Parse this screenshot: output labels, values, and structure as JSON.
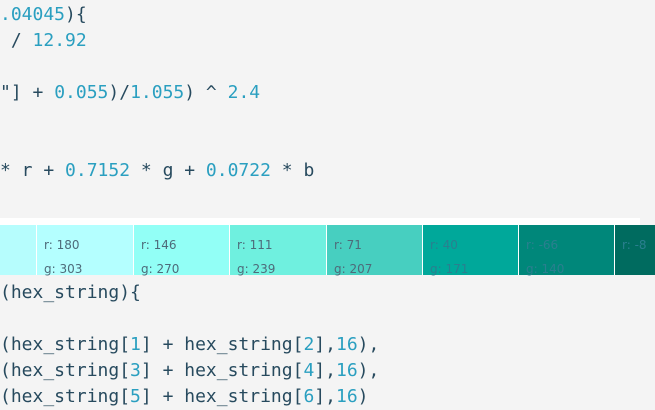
{
  "code_top": [
    [
      {
        "t": ".04045",
        "c": "num"
      },
      {
        "t": "){",
        "c": "op"
      }
    ],
    [
      {
        "t": " / ",
        "c": "op"
      },
      {
        "t": "12.92",
        "c": "num"
      }
    ],
    [],
    [
      {
        "t": "\"] + ",
        "c": "op"
      },
      {
        "t": "0.055",
        "c": "num"
      },
      {
        "t": ")/",
        "c": "op"
      },
      {
        "t": "1.055",
        "c": "num"
      },
      {
        "t": ") ^ ",
        "c": "op"
      },
      {
        "t": "2.4",
        "c": "num"
      }
    ],
    [],
    [],
    [
      {
        "t": "* r + ",
        "c": "op"
      },
      {
        "t": "0.7152",
        "c": "num"
      },
      {
        "t": " * g + ",
        "c": "op"
      },
      {
        "t": "0.0722",
        "c": "num"
      },
      {
        "t": " * b",
        "c": "op"
      }
    ]
  ],
  "code_bottom": [
    [
      {
        "t": "(hex_string){",
        "c": "op"
      }
    ],
    [],
    [
      {
        "t": "(hex_string[",
        "c": "op"
      },
      {
        "t": "1",
        "c": "num"
      },
      {
        "t": "] + hex_string[",
        "c": "op"
      },
      {
        "t": "2",
        "c": "num"
      },
      {
        "t": "],",
        "c": "op"
      },
      {
        "t": "16",
        "c": "num"
      },
      {
        "t": "),",
        "c": "op"
      }
    ],
    [
      {
        "t": "(hex_string[",
        "c": "op"
      },
      {
        "t": "3",
        "c": "num"
      },
      {
        "t": "] + hex_string[",
        "c": "op"
      },
      {
        "t": "4",
        "c": "num"
      },
      {
        "t": "],",
        "c": "op"
      },
      {
        "t": "16",
        "c": "num"
      },
      {
        "t": "),",
        "c": "op"
      }
    ],
    [
      {
        "t": "(hex_string[",
        "c": "op"
      },
      {
        "t": "5",
        "c": "num"
      },
      {
        "t": "] + hex_string[",
        "c": "op"
      },
      {
        "t": "6",
        "c": "num"
      },
      {
        "t": "],",
        "c": "op"
      },
      {
        "t": "16",
        "c": "num"
      },
      {
        "t": ")",
        "c": "op"
      }
    ]
  ],
  "swatches": [
    {
      "color": "#b6fdfd",
      "r": "",
      "g": ""
    },
    {
      "color": "#b4ffff",
      "r": "r: 180",
      "g": "g: 303"
    },
    {
      "color": "#92fff6",
      "r": "r: 146",
      "g": "g: 270"
    },
    {
      "color": "#6ff0df",
      "r": "r: 111",
      "g": "g: 239"
    },
    {
      "color": "#47cfc0",
      "r": "r: 71",
      "g": "g: 207"
    },
    {
      "color": "#00a89a",
      "r": "r: 40",
      "g": "g: 171"
    },
    {
      "color": "#00877a",
      "r": "r: -66",
      "g": "g: 140"
    },
    {
      "color": "#006b5f",
      "r": "r: -8",
      "g": ""
    }
  ]
}
